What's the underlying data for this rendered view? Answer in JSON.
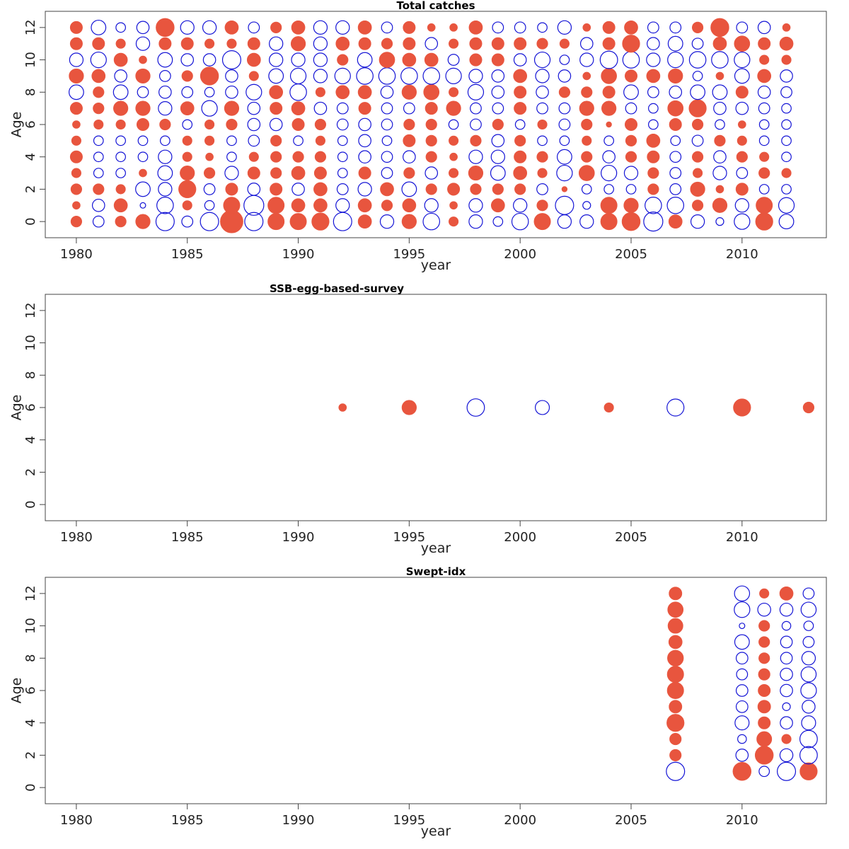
{
  "colors": {
    "positive": "#E8553E",
    "negative": "#1515D6",
    "frame": "#444444"
  },
  "chart_data": [
    {
      "type": "bubble",
      "title": "Total catches",
      "xlabel": "year",
      "ylabel": "Age",
      "xlim": [
        1978.6,
        2013.8
      ],
      "ylim": [
        -1.0,
        13.0
      ],
      "xticks": [
        1980,
        1985,
        1990,
        1995,
        2000,
        2005,
        2010
      ],
      "yticks": [
        0,
        2,
        4,
        6,
        8,
        10,
        12
      ],
      "legend": "none",
      "years": [
        1980,
        1981,
        1982,
        1983,
        1984,
        1985,
        1986,
        1987,
        1988,
        1989,
        1990,
        1991,
        1992,
        1993,
        1994,
        1995,
        1996,
        1997,
        1998,
        1999,
        2000,
        2001,
        2002,
        2003,
        2004,
        2005,
        2006,
        2007,
        2008,
        2009,
        2010,
        2011,
        2012
      ],
      "ages": [
        0,
        1,
        2,
        3,
        4,
        5,
        6,
        7,
        8,
        9,
        10,
        11,
        12
      ],
      "residuals_by_age": [
        [
          0.4,
          -0.4,
          0.4,
          0.7,
          -1.1,
          -0.4,
          -1.1,
          1.7,
          -1.1,
          0.9,
          0.9,
          1.0,
          -1.1,
          0.6,
          -0.6,
          0.7,
          -0.9,
          0.3,
          -0.6,
          -0.3,
          -0.9,
          0.9,
          -0.6,
          -0.6,
          0.9,
          1.1,
          -1.2,
          0.6,
          -0.6,
          -0.2,
          -0.8,
          1.0,
          -0.7
        ],
        [
          0.2,
          -0.5,
          0.6,
          -0.1,
          -0.9,
          0.3,
          -0.3,
          0.9,
          -1.3,
          0.9,
          0.6,
          0.6,
          -0.6,
          0.6,
          0.4,
          0.6,
          -0.6,
          0.2,
          -0.6,
          0.6,
          -0.6,
          0.4,
          -1.1,
          -0.2,
          0.9,
          0.7,
          -0.9,
          -0.9,
          0.4,
          0.7,
          -0.6,
          0.9,
          -0.8
        ],
        [
          0.4,
          0.4,
          0.3,
          -0.7,
          -0.6,
          1.0,
          -0.4,
          0.5,
          -0.5,
          0.5,
          -0.5,
          0.6,
          -0.4,
          -0.6,
          0.6,
          -0.7,
          0.4,
          0.5,
          0.4,
          0.4,
          0.4,
          -0.4,
          0.1,
          -0.3,
          -0.3,
          -0.3,
          0.4,
          -0.4,
          0.7,
          0.2,
          0.5,
          -0.3,
          -0.3
        ],
        [
          0.3,
          -0.3,
          -0.3,
          0.2,
          -0.7,
          0.7,
          0.4,
          -0.6,
          0.5,
          0.4,
          0.6,
          0.5,
          -0.3,
          0.5,
          -0.4,
          0.4,
          -0.5,
          0.3,
          0.7,
          -0.7,
          0.6,
          0.3,
          -0.8,
          0.8,
          -0.8,
          -0.6,
          0.4,
          -0.4,
          0.3,
          -0.6,
          -0.4,
          0.4,
          0.3
        ],
        [
          0.5,
          -0.3,
          -0.3,
          -0.3,
          -0.6,
          0.3,
          0.2,
          -0.3,
          0.3,
          0.4,
          0.4,
          0.4,
          -0.3,
          -0.5,
          -0.4,
          -0.5,
          0.4,
          0.2,
          -0.6,
          -0.6,
          0.5,
          0.4,
          -0.7,
          0.4,
          -0.5,
          0.4,
          0.5,
          -0.4,
          0.4,
          -0.5,
          0.4,
          0.3,
          -0.3
        ],
        [
          0.3,
          -0.3,
          -0.3,
          -0.3,
          -0.3,
          0.3,
          0.3,
          -0.3,
          -0.4,
          0.4,
          -0.3,
          0.3,
          -0.3,
          -0.5,
          -0.3,
          0.5,
          0.4,
          0.3,
          0.4,
          -0.5,
          0.4,
          -0.3,
          -0.3,
          0.3,
          -0.3,
          0.4,
          0.6,
          -0.3,
          -0.4,
          0.4,
          0.3,
          -0.3,
          -0.3
        ],
        [
          0.2,
          0.3,
          0.3,
          0.5,
          0.4,
          -0.3,
          0.3,
          0.4,
          -0.5,
          -0.5,
          0.5,
          0.4,
          -0.4,
          -0.5,
          -0.4,
          0.4,
          0.4,
          -0.3,
          -0.4,
          0.4,
          -0.3,
          0.3,
          -0.4,
          0.4,
          0.1,
          0.5,
          -0.3,
          0.5,
          0.4,
          -0.3,
          0.2,
          -0.3,
          -0.3
        ],
        [
          0.5,
          0.4,
          0.7,
          0.7,
          -0.6,
          0.6,
          -0.8,
          0.7,
          -0.5,
          0.5,
          0.6,
          -0.5,
          -0.4,
          0.5,
          -0.4,
          -0.4,
          0.5,
          0.7,
          -0.4,
          -0.4,
          0.5,
          -0.4,
          -0.4,
          0.7,
          0.7,
          -0.4,
          -0.3,
          0.8,
          1.0,
          -0.5,
          -0.5,
          -0.4,
          -0.3
        ],
        [
          -0.7,
          0.4,
          -0.7,
          -0.4,
          -0.5,
          -0.4,
          -0.3,
          -0.5,
          -0.8,
          0.6,
          -0.9,
          0.3,
          0.6,
          0.6,
          -0.5,
          0.7,
          0.8,
          0.3,
          -0.8,
          -0.5,
          0.5,
          -0.5,
          0.4,
          0.4,
          0.5,
          -0.7,
          -0.4,
          -0.5,
          -0.7,
          -0.7,
          0.5,
          -0.5,
          -0.4
        ],
        [
          0.7,
          0.6,
          -0.5,
          0.7,
          -0.4,
          0.4,
          1.1,
          -0.5,
          0.3,
          -0.7,
          -0.8,
          -0.6,
          -0.8,
          -0.9,
          -0.9,
          -0.9,
          -0.9,
          -0.8,
          -0.6,
          -0.5,
          0.6,
          -0.6,
          -0.5,
          0.2,
          0.8,
          0.5,
          0.6,
          0.7,
          -0.3,
          0.2,
          -0.7,
          0.6,
          -0.5
        ],
        [
          -0.6,
          -0.8,
          0.6,
          0.2,
          -0.7,
          -0.5,
          -0.5,
          -1.1,
          0.6,
          -0.6,
          -0.6,
          -0.6,
          0.4,
          -0.7,
          0.8,
          0.6,
          0.6,
          -0.4,
          0.5,
          0.5,
          -0.5,
          -0.8,
          -0.3,
          -0.6,
          -1.0,
          -0.9,
          -0.6,
          -0.8,
          -0.9,
          -0.9,
          -0.8,
          0.3,
          0.3
        ],
        [
          0.5,
          0.5,
          0.3,
          -0.6,
          0.5,
          0.5,
          0.3,
          0.3,
          0.5,
          -0.6,
          0.7,
          -0.6,
          0.6,
          0.5,
          0.4,
          0.5,
          -0.5,
          0.3,
          0.5,
          0.5,
          0.5,
          0.4,
          0.3,
          -0.5,
          0.5,
          1.0,
          -0.5,
          -0.7,
          -0.4,
          0.6,
          0.8,
          0.5,
          0.6
        ],
        [
          0.5,
          -0.7,
          -0.3,
          -0.5,
          1.1,
          -0.6,
          -0.6,
          0.6,
          -0.4,
          0.4,
          0.6,
          -0.6,
          -0.6,
          0.6,
          -0.4,
          0.5,
          0.2,
          0.2,
          0.6,
          -0.4,
          -0.4,
          -0.3,
          -0.6,
          0.2,
          0.5,
          0.6,
          -0.4,
          -0.4,
          0.4,
          1.1,
          -0.4,
          -0.5,
          0.2
        ]
      ]
    },
    {
      "type": "bubble",
      "title": "SSB-egg-based-survey",
      "xlabel": "year",
      "ylabel": "Age",
      "xlim": [
        1978.6,
        2013.8
      ],
      "ylim": [
        -1.0,
        13.0
      ],
      "xticks": [
        1980,
        1985,
        1990,
        1995,
        2000,
        2005,
        2010
      ],
      "yticks": [
        0,
        2,
        4,
        6,
        8,
        10,
        12
      ],
      "legend": "none",
      "points": [
        {
          "year": 1992,
          "age": 6,
          "residual": 0.2
        },
        {
          "year": 1995,
          "age": 6,
          "residual": 0.7
        },
        {
          "year": 1998,
          "age": 6,
          "residual": -1.0
        },
        {
          "year": 2001,
          "age": 6,
          "residual": -0.65
        },
        {
          "year": 2004,
          "age": 6,
          "residual": 0.3
        },
        {
          "year": 2007,
          "age": 6,
          "residual": -0.95
        },
        {
          "year": 2010,
          "age": 6,
          "residual": 1.0
        },
        {
          "year": 2013,
          "age": 6,
          "residual": 0.4
        }
      ]
    },
    {
      "type": "bubble",
      "title": "Swept-idx",
      "xlabel": "year",
      "ylabel": "Age",
      "xlim": [
        1978.6,
        2013.8
      ],
      "ylim": [
        -1.0,
        13.0
      ],
      "xticks": [
        1980,
        1985,
        1990,
        1995,
        2000,
        2005,
        2010
      ],
      "yticks": [
        0,
        2,
        4,
        6,
        8,
        10,
        12
      ],
      "legend": "none",
      "years": [
        2007,
        2010,
        2011,
        2012,
        2013
      ],
      "ages": [
        1,
        2,
        3,
        4,
        5,
        6,
        7,
        8,
        9,
        10,
        11,
        12
      ],
      "residuals_by_age": [
        [
          -1.1,
          1.1,
          -0.35,
          -1.1,
          1.0
        ],
        [
          0.45,
          -0.5,
          1.1,
          -0.55,
          -1.0
        ],
        [
          0.45,
          -0.25,
          0.75,
          0.3,
          -1.0
        ],
        [
          1.0,
          -0.65,
          0.5,
          -0.5,
          -0.65
        ],
        [
          0.55,
          -0.45,
          0.55,
          -0.2,
          -0.55
        ],
        [
          0.9,
          -0.45,
          0.5,
          -0.5,
          -0.8
        ],
        [
          0.9,
          -0.4,
          0.45,
          -0.5,
          -0.75
        ],
        [
          0.85,
          -0.45,
          0.4,
          -0.45,
          -0.6
        ],
        [
          0.6,
          -0.7,
          0.4,
          -0.45,
          -0.4
        ],
        [
          0.75,
          -0.1,
          0.4,
          -0.25,
          -0.3
        ],
        [
          0.8,
          -0.8,
          -0.55,
          -0.55,
          -0.75
        ],
        [
          0.55,
          -0.75,
          0.3,
          0.6,
          -0.4
        ]
      ]
    }
  ]
}
